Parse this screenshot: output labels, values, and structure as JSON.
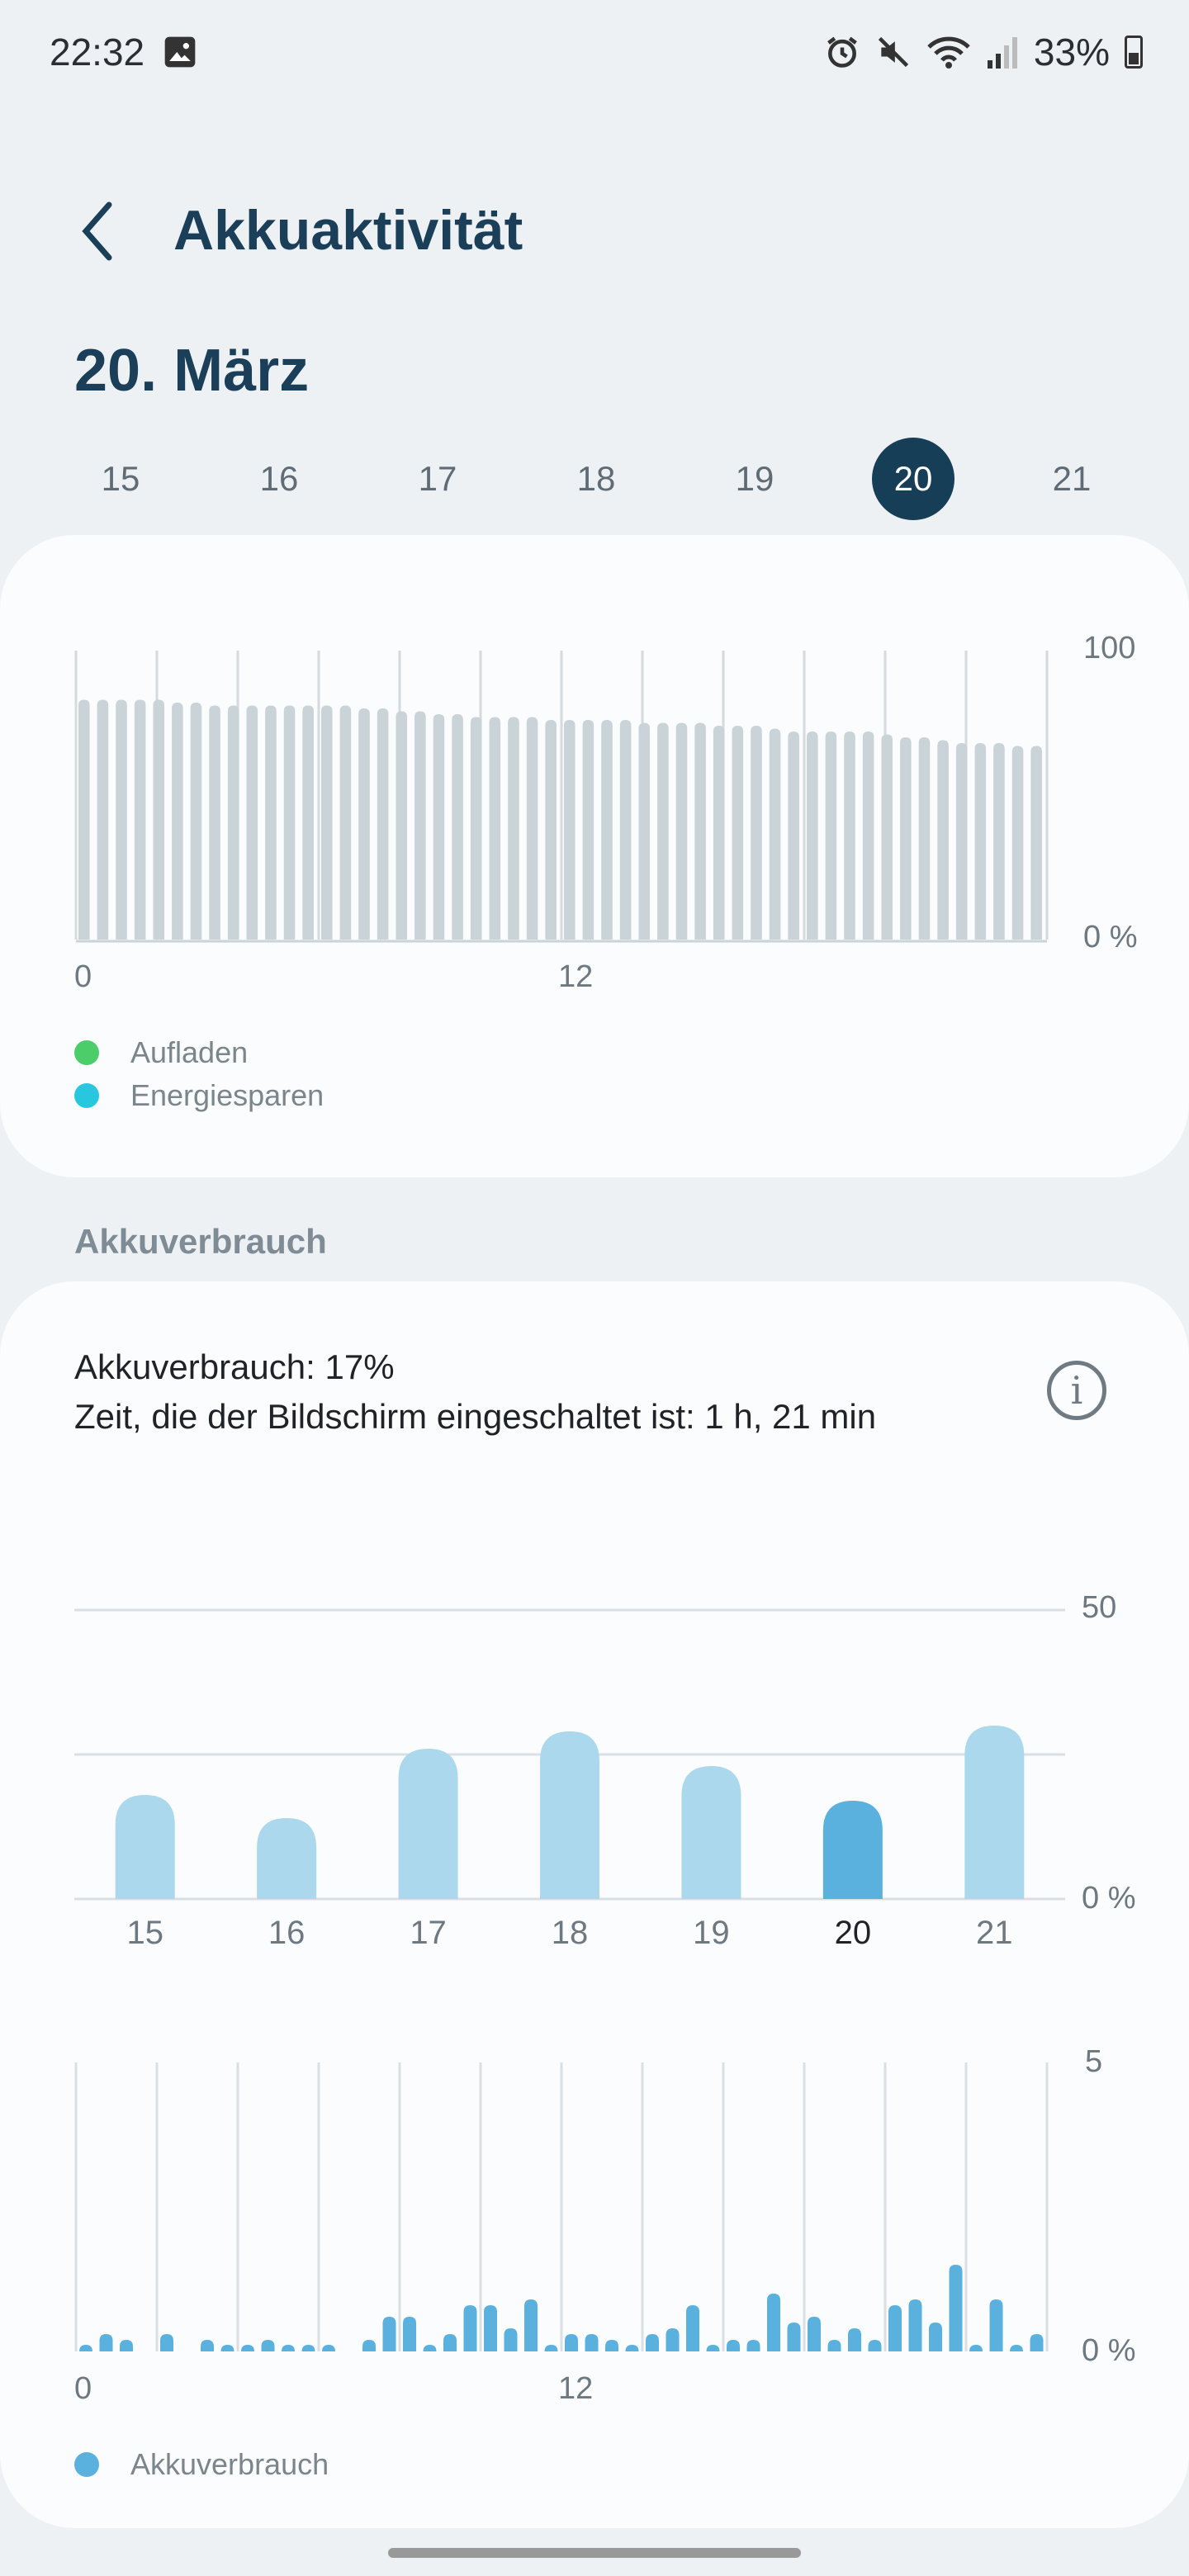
{
  "status_bar": {
    "time": "22:32",
    "battery": "33%",
    "icons": [
      "image-icon",
      "alarm-icon",
      "mute-icon",
      "wifi-icon",
      "signal-icon",
      "battery-icon"
    ]
  },
  "header": {
    "title": "Akkuaktivität",
    "date": "20. März"
  },
  "days": {
    "items": [
      "15",
      "16",
      "17",
      "18",
      "19",
      "20",
      "21"
    ],
    "selected": "20"
  },
  "level_chart": {
    "y_top": "100",
    "y_bottom": "0 %",
    "x_labels": [
      "0",
      "12"
    ],
    "legend": [
      {
        "label": "Aufladen",
        "color": "#4ccd6a"
      },
      {
        "label": "Energiesparen",
        "color": "#29c6e0"
      }
    ],
    "chart_data": {
      "type": "bar",
      "ylim": [
        0,
        100
      ],
      "values": [
        83,
        83,
        83,
        83,
        83,
        82,
        82,
        81,
        81,
        81,
        81,
        81,
        81,
        81,
        81,
        80,
        80,
        79,
        79,
        78,
        78,
        77,
        77,
        77,
        77,
        76,
        76,
        76,
        76,
        76,
        75,
        75,
        75,
        75,
        74,
        74,
        74,
        73,
        72,
        72,
        72,
        72,
        72,
        71,
        70,
        70,
        69,
        68,
        68,
        68,
        67,
        67
      ]
    }
  },
  "usage": {
    "section_title": "Akkuverbrauch",
    "line1": "Akkuverbrauch: 17%",
    "line2": "Zeit, die der Bildschirm eingeschaltet ist: 1 h, 21 min"
  },
  "daily_chart": {
    "y_top": "50",
    "y_bottom": "0 %",
    "chart_data": {
      "type": "bar",
      "categories": [
        "15",
        "16",
        "17",
        "18",
        "19",
        "20",
        "21"
      ],
      "values": [
        18,
        14,
        26,
        29,
        23,
        17,
        30
      ],
      "ylim": [
        0,
        50
      ],
      "highlight": "20"
    }
  },
  "hourly_chart": {
    "y_top": "5",
    "y_bottom": "0 %",
    "x_labels": [
      "0",
      "12"
    ],
    "legend": [
      {
        "label": "Akkuverbrauch",
        "color": "#5ab1de"
      }
    ],
    "chart_data": {
      "type": "bar",
      "values": [
        0.1,
        0.3,
        0.2,
        0,
        0.3,
        0,
        0.2,
        0.1,
        0.1,
        0.2,
        0.1,
        0.1,
        0.1,
        0,
        0.2,
        0.6,
        0.6,
        0.1,
        0.3,
        0.8,
        0.8,
        0.4,
        0.9,
        0.1,
        0.3,
        0.3,
        0.2,
        0.1,
        0.3,
        0.4,
        0.8,
        0.1,
        0.2,
        0.2,
        1.0,
        0.5,
        0.6,
        0.2,
        0.4,
        0.2,
        0.8,
        0.9,
        0.5,
        1.5,
        0.1,
        0.9,
        0.1,
        0.3
      ]
    }
  }
}
